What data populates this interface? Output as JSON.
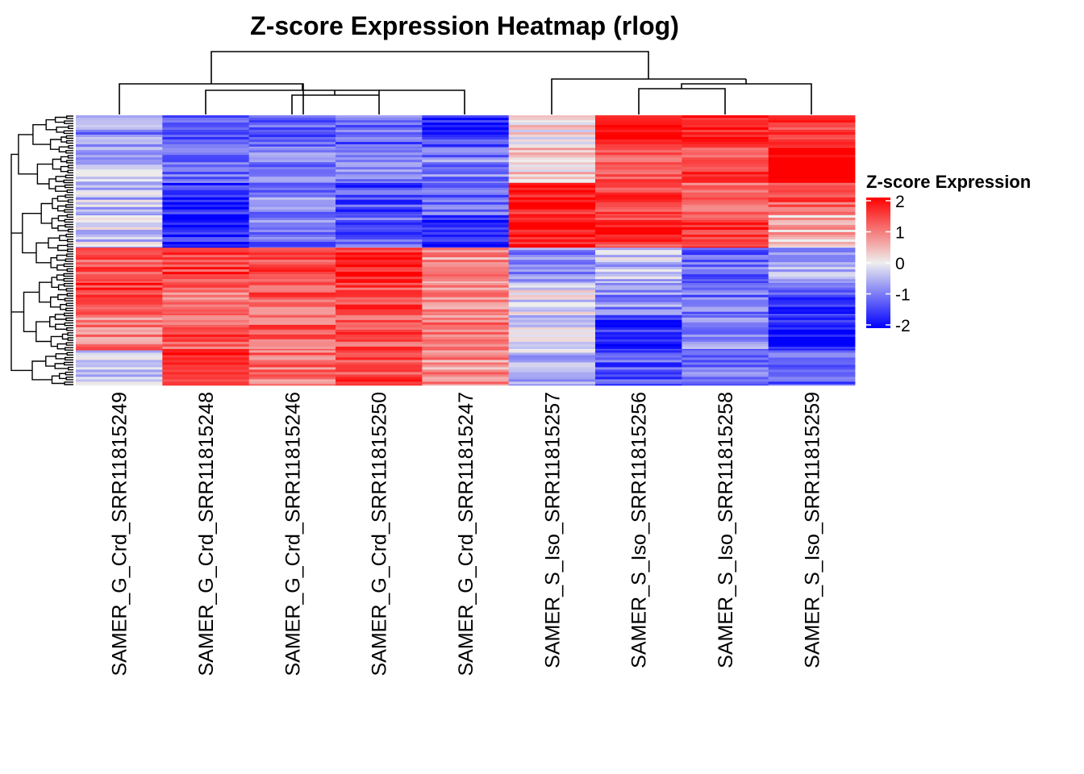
{
  "chart_data": {
    "type": "heatmap",
    "title": "Z-score Expression Heatmap (rlog)",
    "columns": [
      "SAMER_G_Crd_SRR11815249",
      "SAMER_G_Crd_SRR11815248",
      "SAMER_G_Crd_SRR11815246",
      "SAMER_G_Crd_SRR11815250",
      "SAMER_G_Crd_SRR11815247",
      "SAMER_S_Iso_SRR11815257",
      "SAMER_S_Iso_SRR11815256",
      "SAMER_S_Iso_SRR11815258",
      "SAMER_S_Iso_SRR11815259"
    ],
    "row_blocks": [
      {
        "name": "block-1",
        "row_fraction": 0.12,
        "values": [
          -0.8,
          -1.3,
          -1.1,
          -1.2,
          -1.6,
          0.2,
          2.0,
          1.8,
          1.4
        ]
      },
      {
        "name": "block-2",
        "row_fraction": 0.13,
        "values": [
          -0.5,
          -1.0,
          -1.0,
          -0.9,
          -0.9,
          0.3,
          1.2,
          1.4,
          2.2
        ]
      },
      {
        "name": "block-3",
        "row_fraction": 0.12,
        "values": [
          -0.4,
          -1.6,
          -0.9,
          -1.4,
          -1.1,
          1.8,
          1.5,
          1.2,
          1.3
        ]
      },
      {
        "name": "block-4",
        "row_fraction": 0.12,
        "values": [
          -0.3,
          -1.7,
          -1.0,
          -1.2,
          -1.7,
          1.9,
          1.6,
          1.5,
          0.5
        ]
      },
      {
        "name": "block-5",
        "row_fraction": 0.13,
        "values": [
          1.2,
          1.5,
          1.3,
          1.8,
          0.8,
          -0.9,
          -0.4,
          -1.2,
          -0.7
        ]
      },
      {
        "name": "block-6",
        "row_fraction": 0.12,
        "values": [
          1.5,
          1.1,
          1.2,
          1.4,
          0.9,
          -0.1,
          -0.8,
          -1.0,
          -1.4
        ]
      },
      {
        "name": "block-7",
        "row_fraction": 0.13,
        "values": [
          1.0,
          1.3,
          1.2,
          1.3,
          1.0,
          -0.3,
          -1.6,
          -0.9,
          -1.8
        ]
      },
      {
        "name": "block-8",
        "row_fraction": 0.13,
        "values": [
          -0.4,
          1.6,
          1.1,
          1.4,
          0.8,
          -0.4,
          -1.3,
          -1.1,
          -1.3
        ]
      }
    ],
    "column_dendrogram": "((((249),((248),((246),(250),(247))))),((257),(((256),(258)),(259))))",
    "color_scale": {
      "min": -2,
      "mid": 0,
      "max": 2,
      "low": "#0000FF",
      "mid_color": "#EEEEEE",
      "high": "#FF0000"
    },
    "legend": {
      "title": "Z-score Expression",
      "ticks": [
        "2",
        "1",
        "0",
        "-1",
        "-2"
      ],
      "placement": "right"
    }
  }
}
